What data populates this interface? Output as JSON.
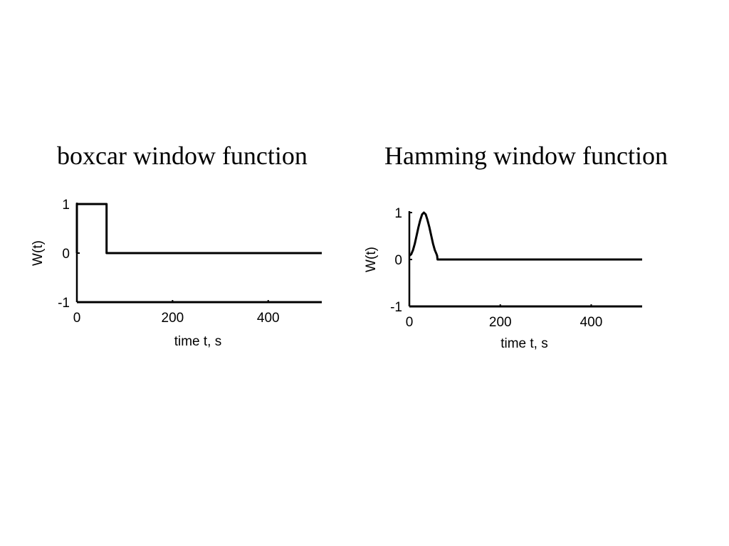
{
  "chart_data": [
    {
      "type": "line",
      "title": "boxcar window function",
      "xlabel": "time t, s",
      "ylabel": "W(t)",
      "xlim": [
        0,
        512
      ],
      "ylim": [
        -1,
        1
      ],
      "xticks": [
        0,
        200,
        400
      ],
      "yticks": [
        -1,
        0,
        1
      ],
      "grid": false,
      "series": [
        {
          "x": [
            0,
            0,
            62,
            62,
            512
          ],
          "y": [
            0,
            1,
            1,
            0,
            0
          ]
        }
      ]
    },
    {
      "type": "line",
      "title": "Hamming window function",
      "xlabel": "time t, s",
      "ylabel": "W(t)",
      "xlim": [
        0,
        512
      ],
      "ylim": [
        -1,
        1
      ],
      "xticks": [
        0,
        200,
        400
      ],
      "yticks": [
        -1,
        0,
        1
      ],
      "grid": false,
      "series": [
        {
          "x": [
            0,
            4,
            8,
            12,
            16,
            20,
            24,
            28,
            32,
            36,
            40,
            44,
            48,
            52,
            56,
            60,
            61,
            62,
            512
          ],
          "y": [
            0.08,
            0.11,
            0.2,
            0.34,
            0.51,
            0.69,
            0.84,
            0.96,
            1.0,
            0.96,
            0.84,
            0.69,
            0.51,
            0.34,
            0.2,
            0.11,
            0.08,
            0,
            0
          ]
        }
      ]
    }
  ]
}
